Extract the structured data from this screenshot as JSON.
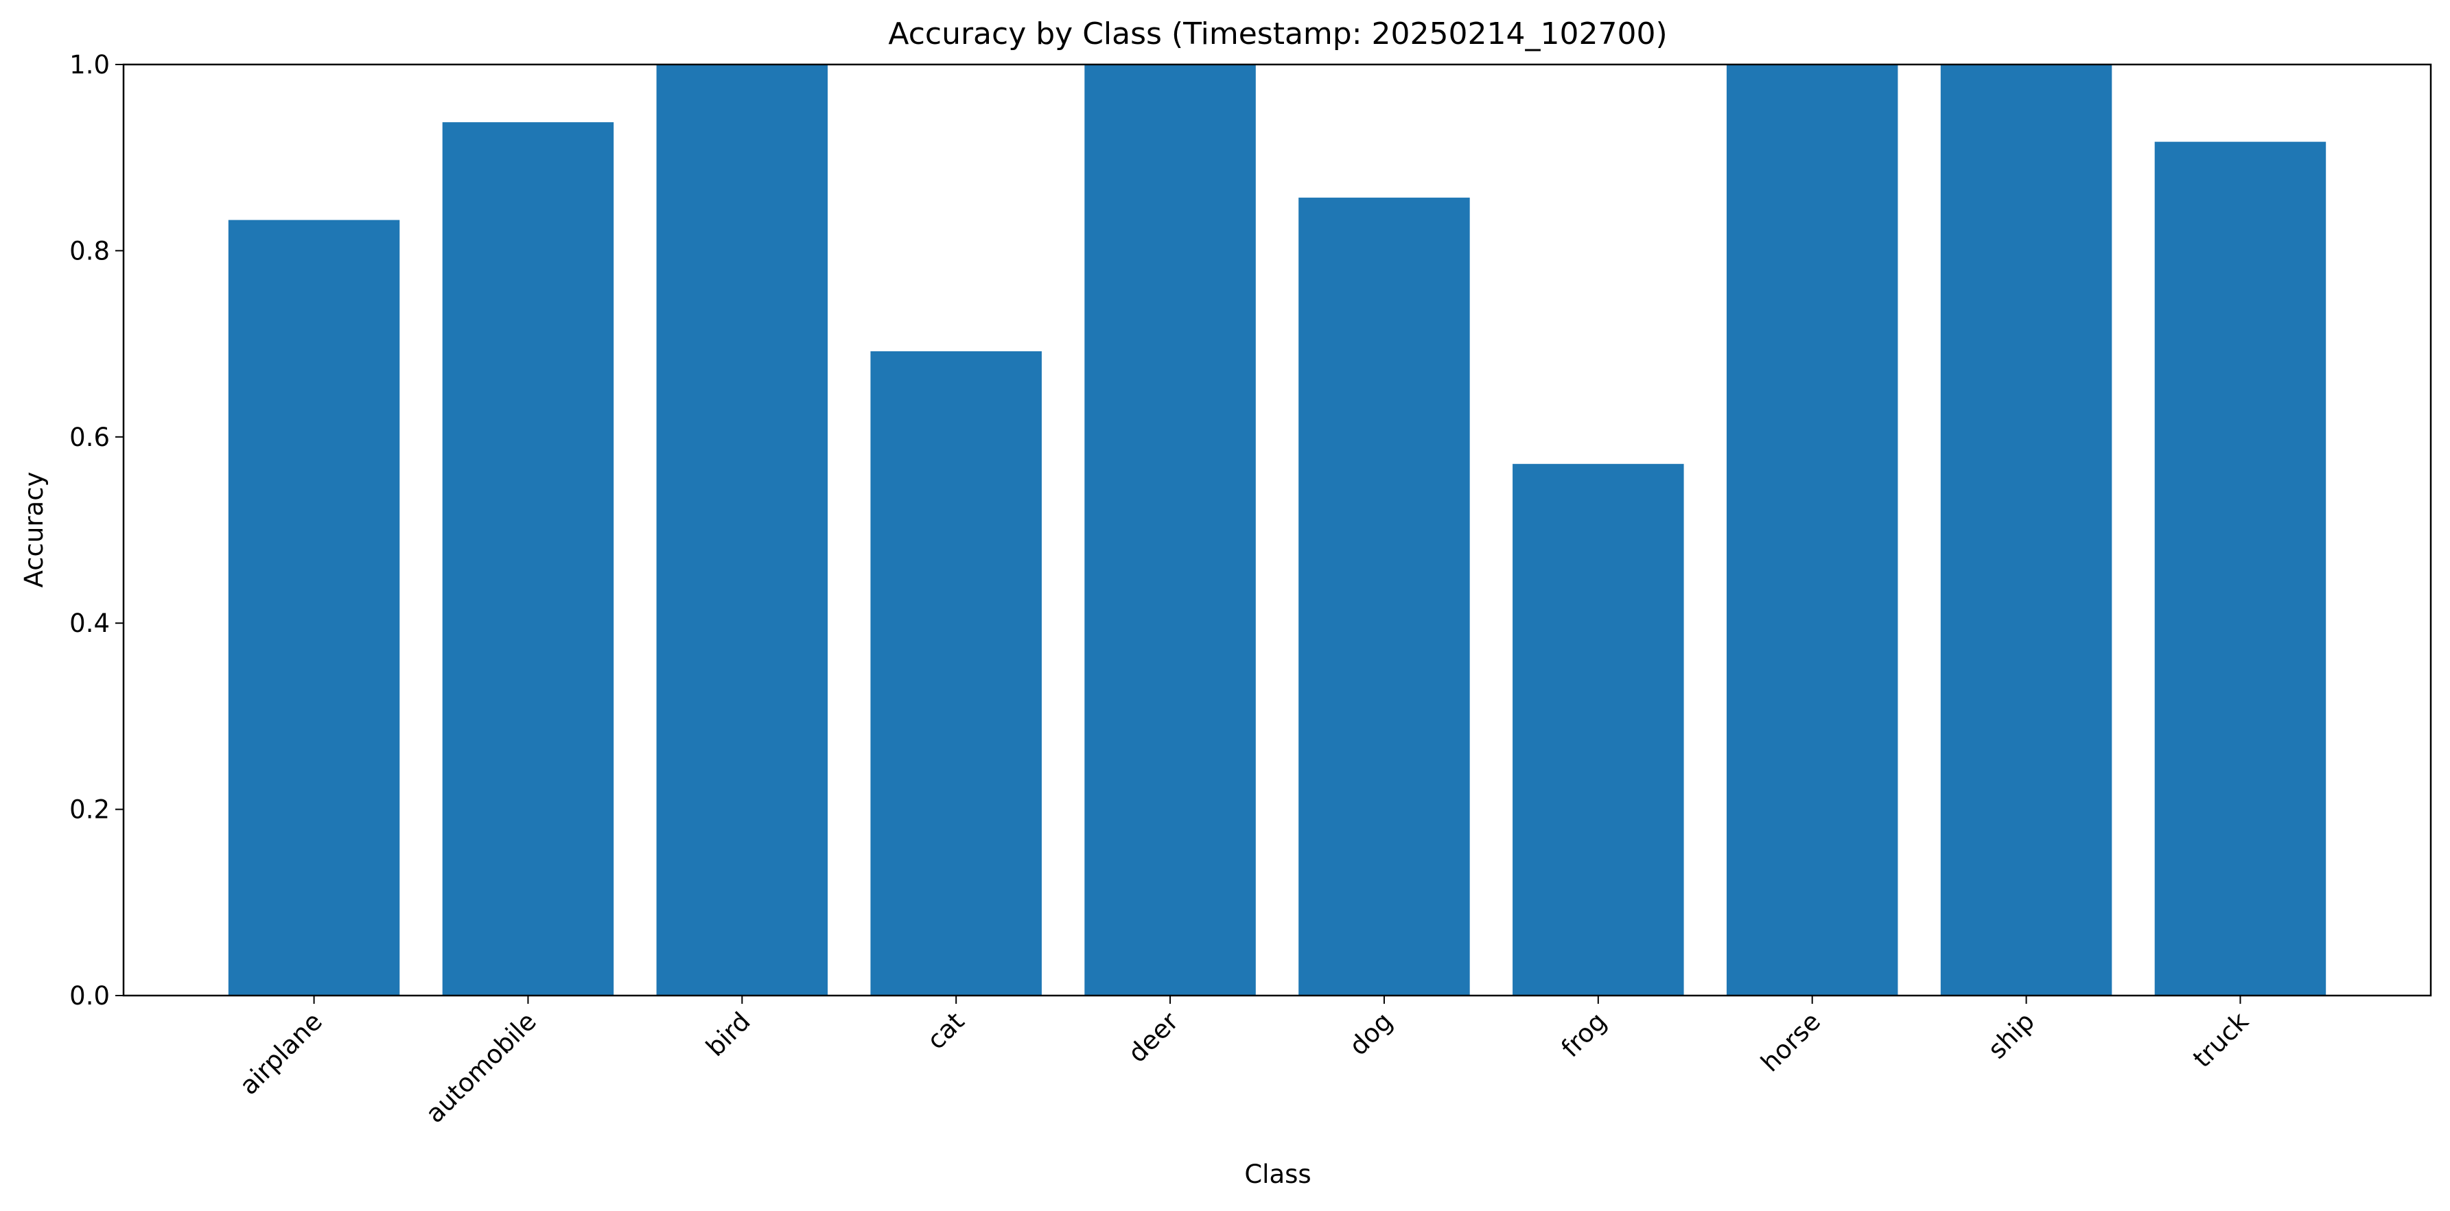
{
  "chart_data": {
    "type": "bar",
    "title": "Accuracy by Class (Timestamp: 20250214_102700)",
    "xlabel": "Class",
    "ylabel": "Accuracy",
    "categories": [
      "airplane",
      "automobile",
      "bird",
      "cat",
      "deer",
      "dog",
      "frog",
      "horse",
      "ship",
      "truck"
    ],
    "values": [
      0.833,
      0.938,
      1.0,
      0.692,
      1.0,
      0.857,
      0.571,
      1.0,
      1.0,
      0.917
    ],
    "ylim": [
      0.0,
      1.0
    ],
    "yticks": [
      "0.0",
      "0.2",
      "0.4",
      "0.6",
      "0.8",
      "1.0"
    ],
    "grid": false,
    "bar_color": "#1f77b4"
  }
}
